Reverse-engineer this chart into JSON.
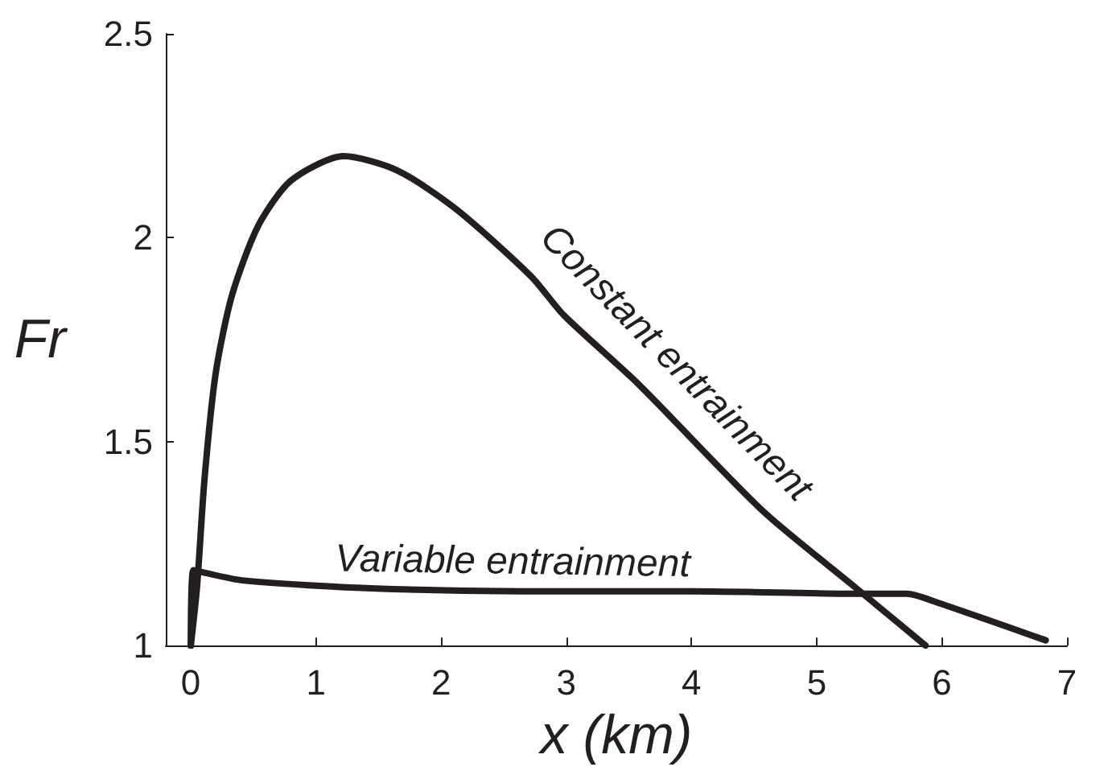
{
  "chart_data": {
    "type": "line",
    "xlabel": "x (km)",
    "ylabel": "Fr",
    "xlim": [
      -0.2,
      7
    ],
    "xticks": [
      0,
      1,
      2,
      3,
      4,
      5,
      6,
      7
    ],
    "ylim": [
      1,
      2.5
    ],
    "yticks": [
      1,
      1.5,
      2,
      2.5
    ],
    "grid": false,
    "marker": "none",
    "line_style": "solid",
    "series": [
      {
        "name": "Constant entrainment",
        "color": "#231f20",
        "x": [
          0,
          0.05,
          0.11,
          0.2,
          0.33,
          0.54,
          0.8,
          1.22,
          1.65,
          2.12,
          2.72,
          2.98,
          3.58,
          4.57,
          5.3,
          5.87
        ],
        "values": [
          1,
          1.145,
          1.41,
          1.67,
          1.86,
          2.03,
          2.14,
          2.2,
          2.165,
          2.07,
          1.905,
          1.81,
          1.64,
          1.33,
          1.145,
          1
        ]
      },
      {
        "name": "Variable entrainment",
        "color": "#231f20",
        "x": [
          0,
          0.02,
          0.41,
          1.48,
          2.98,
          4.0,
          5.37,
          5.72,
          5.97,
          6.83
        ],
        "values": [
          1,
          1.185,
          1.16,
          1.14,
          1.133,
          1.133,
          1.127,
          1.127,
          1.105,
          1.013
        ]
      }
    ]
  }
}
